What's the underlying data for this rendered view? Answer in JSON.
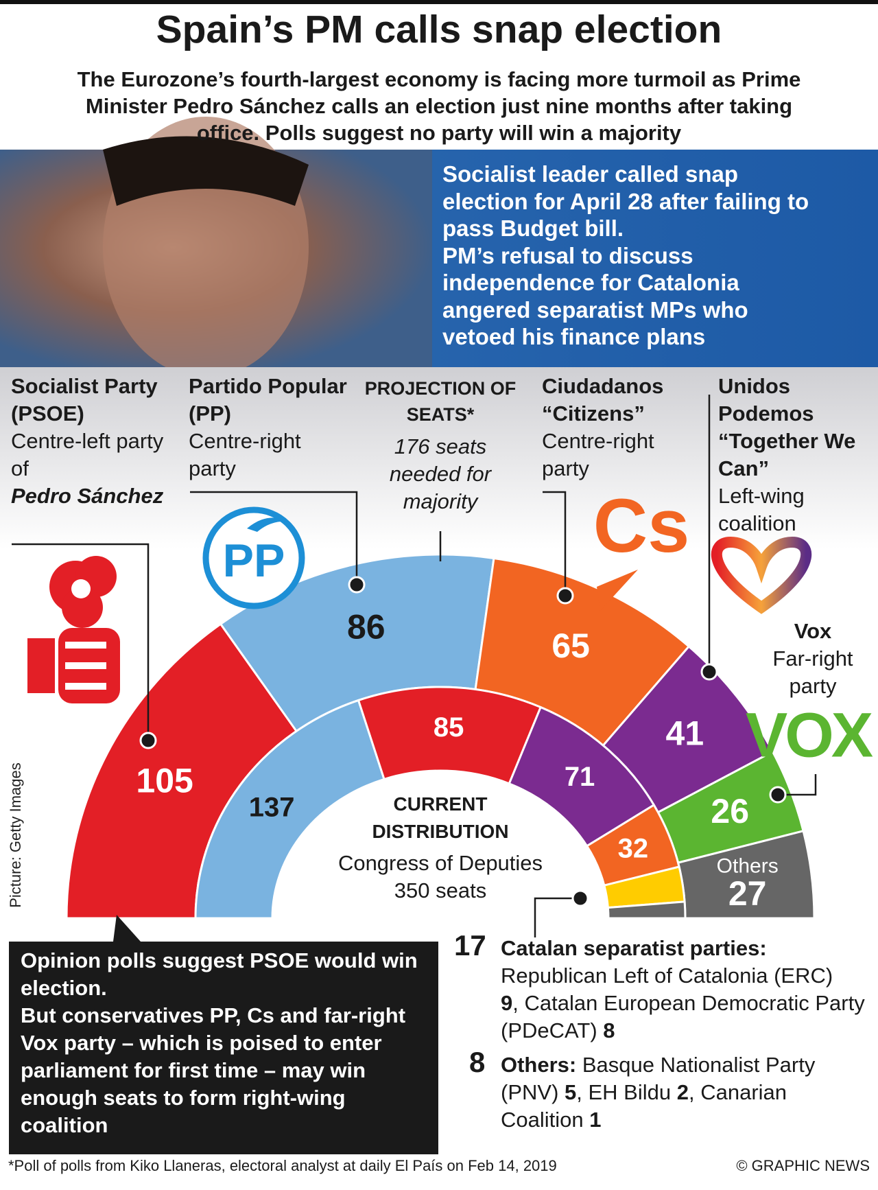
{
  "header": {
    "title": "Spain’s PM calls snap election",
    "subtitle": "The Eurozone’s fourth-largest economy is facing more turmoil as Prime Minister Pedro Sánchez calls an election just nine months after taking office. Polls suggest no party will win a majority"
  },
  "intro": [
    "Socialist leader called snap election for April 28 after failing to pass Budget bill.",
    "PM’s refusal to discuss independence for Catalonia angered separatist MPs who vetoed his finance plans"
  ],
  "parties": {
    "psoe": {
      "name": "Socialist Party (PSOE)",
      "description": "Centre-left party of",
      "leader": "Pedro Sánchez"
    },
    "pp": {
      "name": "Partido Popular (PP)",
      "description": "Centre-right party"
    },
    "cs": {
      "name": "Ciudadanos “Citizens”",
      "description": "Centre-right party"
    },
    "podemos": {
      "name": "Unidos Podemos “Together We Can”",
      "description": "Left-wing coalition"
    },
    "vox": {
      "name": "Vox",
      "description": "Far-right party"
    }
  },
  "logos": {
    "pp": "PP",
    "cs": "Cs",
    "vox": "VOX"
  },
  "projection": {
    "heading": "PROJECTION OF SEATS*",
    "note": "176 seats needed for majority",
    "segments": [
      {
        "value": 105,
        "color": "#e31f26"
      },
      {
        "value": 86,
        "color": "#7ab3e0"
      },
      {
        "value": 65,
        "color": "#f26522"
      },
      {
        "value": 41,
        "color": "#7b2b90"
      },
      {
        "value": 26,
        "color": "#5bb531"
      },
      {
        "name": "Others",
        "value": 27,
        "color": "#666666"
      }
    ]
  },
  "current": {
    "heading": "CURRENT DISTRIBUTION",
    "subheading": "Congress of Deputies 350 seats",
    "segments": [
      {
        "value": 137,
        "color": "#7ab3e0"
      },
      {
        "value": 85,
        "color": "#e31f26"
      },
      {
        "value": 71,
        "color": "#7b2b90"
      },
      {
        "value": 32,
        "color": "#f26522"
      }
    ],
    "catalan_color": "#ffcc00",
    "others_color": "#666666",
    "total": 350
  },
  "notes": {
    "separator": ", ",
    "catalan": {
      "total": 17,
      "heading": "Catalan separatist parties:",
      "items": [
        {
          "name": "Republican Left of Catalonia (ERC)",
          "seats": 9
        },
        {
          "name": "Catalan European Democratic Party (PDeCAT)",
          "seats": 8
        }
      ]
    },
    "others": {
      "total": 8,
      "heading": "Others:",
      "items": [
        {
          "name": "Basque Nationalist Party (PNV)",
          "seats": 5
        },
        {
          "name": "EH Bildu",
          "seats": 2
        },
        {
          "name": "Canarian Coalition",
          "seats": 1
        }
      ]
    }
  },
  "opinion": [
    "Opinion polls suggest PSOE would win election.",
    "But conservatives PP, Cs and far-right Vox party – which is poised to enter parliament for first time – may win enough seats to form right-wing coalition"
  ],
  "footer": {
    "footnote": "*Poll of polls from Kiko Llaneras, electoral analyst at daily El País on Feb 14, 2019",
    "credit": "© GRAPHIC NEWS",
    "picture": "Picture: Getty Images"
  }
}
